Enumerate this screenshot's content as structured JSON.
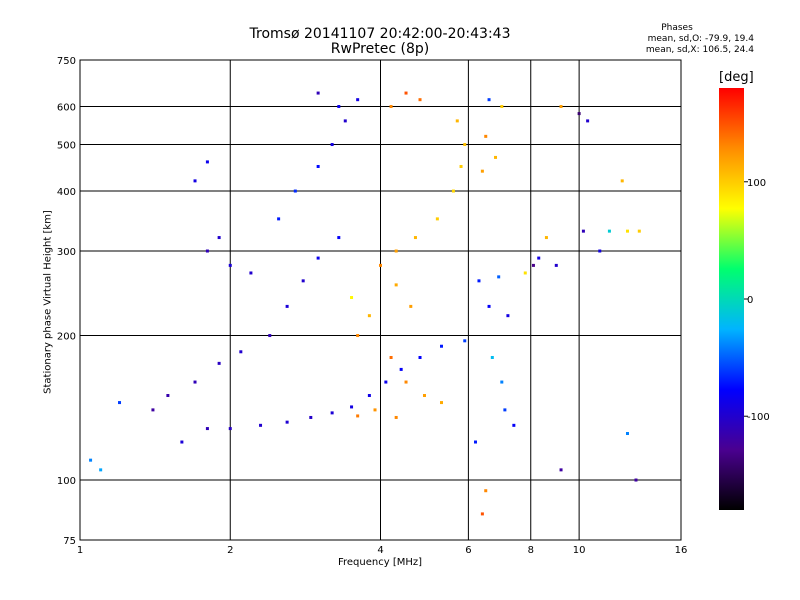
{
  "title_line1": "Tromsø 20141107 20:42:00-20:43:43",
  "title_line2": "RwPretec (8p)",
  "phase_box": {
    "heading": "Phases",
    "line_o": "mean, sd,O: -79.9, 19.4",
    "line_x": "mean, sd,X: 106.5, 24.4"
  },
  "colorbar": {
    "unit_label": "[deg]",
    "ticks": [
      100,
      0,
      -100
    ],
    "range": [
      -180,
      180
    ],
    "colormap": [
      "#000000",
      "#4a0090",
      "#0000ff",
      "#00b4ff",
      "#00ff6e",
      "#ffff00",
      "#ff8c00",
      "#ff0000"
    ]
  },
  "chart_data": {
    "type": "scatter",
    "title": "Tromsø 20141107 20:42:00-20:43:43",
    "subtitle": "RwPretec (8p)",
    "xlabel": "Frequency [MHz]",
    "ylabel": "Stationary phase Virtual Height [km]",
    "x_scale": "log",
    "y_scale": "log",
    "xlim": [
      1,
      16
    ],
    "ylim": [
      75,
      750
    ],
    "x_ticks": [
      1,
      2,
      4,
      6,
      8,
      10,
      16
    ],
    "y_ticks": [
      75,
      100,
      200,
      300,
      400,
      500,
      600,
      750
    ],
    "x_gridlines": [
      2,
      4,
      6,
      8,
      10
    ],
    "y_gridlines": [
      100,
      200,
      300,
      400,
      500,
      600
    ],
    "color_quantity": "phase [deg]",
    "series": [
      {
        "comment_free_note": "",
        "points": [
          [
            1.6,
            120,
            -95
          ],
          [
            1.8,
            128,
            -110
          ],
          [
            2.0,
            128,
            -105
          ],
          [
            2.3,
            130,
            -100
          ],
          [
            2.6,
            132,
            -98
          ],
          [
            2.9,
            135,
            -102
          ],
          [
            3.2,
            138,
            -96
          ],
          [
            3.5,
            142,
            -90
          ],
          [
            3.8,
            150,
            -88
          ],
          [
            4.1,
            160,
            -85
          ],
          [
            4.4,
            170,
            -80
          ],
          [
            4.8,
            180,
            -78
          ],
          [
            5.3,
            190,
            -70
          ],
          [
            5.9,
            195,
            -60
          ],
          [
            1.4,
            140,
            -120
          ],
          [
            1.5,
            150,
            -115
          ],
          [
            1.7,
            160,
            -110
          ],
          [
            1.9,
            175,
            -105
          ],
          [
            2.1,
            185,
            -100
          ],
          [
            1.2,
            145,
            -60
          ],
          [
            1.05,
            110,
            -40
          ],
          [
            1.1,
            105,
            -30
          ],
          [
            2.4,
            200,
            -110
          ],
          [
            2.6,
            230,
            -95
          ],
          [
            2.8,
            260,
            -100
          ],
          [
            3.0,
            290,
            -85
          ],
          [
            3.3,
            320,
            -80
          ],
          [
            2.5,
            350,
            -70
          ],
          [
            2.7,
            400,
            -65
          ],
          [
            3.0,
            450,
            -75
          ],
          [
            3.2,
            500,
            -90
          ],
          [
            3.4,
            560,
            -100
          ],
          [
            3.6,
            620,
            -90
          ],
          [
            3.0,
            640,
            -110
          ],
          [
            3.3,
            600,
            -85
          ],
          [
            2.2,
            270,
            -100
          ],
          [
            2.0,
            280,
            -95
          ],
          [
            1.8,
            300,
            -110
          ],
          [
            1.9,
            320,
            -100
          ],
          [
            1.7,
            420,
            -90
          ],
          [
            1.8,
            460,
            -85
          ],
          [
            3.5,
            240,
            80
          ],
          [
            3.8,
            220,
            110
          ],
          [
            3.6,
            200,
            130
          ],
          [
            4.2,
            180,
            140
          ],
          [
            4.5,
            160,
            130
          ],
          [
            4.9,
            150,
            120
          ],
          [
            5.3,
            145,
            115
          ],
          [
            3.9,
            140,
            125
          ],
          [
            4.3,
            135,
            130
          ],
          [
            3.6,
            136,
            135
          ],
          [
            4.0,
            280,
            130
          ],
          [
            4.3,
            300,
            120
          ],
          [
            4.7,
            320,
            110
          ],
          [
            5.2,
            350,
            100
          ],
          [
            5.6,
            400,
            95
          ],
          [
            5.8,
            450,
            100
          ],
          [
            5.9,
            500,
            105
          ],
          [
            5.7,
            560,
            110
          ],
          [
            4.8,
            620,
            140
          ],
          [
            4.5,
            640,
            150
          ],
          [
            4.2,
            600,
            130
          ],
          [
            4.6,
            230,
            120
          ],
          [
            4.3,
            255,
            115
          ],
          [
            6.5,
            520,
            130
          ],
          [
            6.8,
            470,
            110
          ],
          [
            6.4,
            440,
            120
          ],
          [
            7.0,
            600,
            100
          ],
          [
            6.6,
            620,
            -60
          ],
          [
            6.3,
            260,
            -70
          ],
          [
            6.9,
            265,
            -50
          ],
          [
            6.6,
            230,
            -80
          ],
          [
            7.2,
            220,
            -90
          ],
          [
            6.7,
            180,
            -20
          ],
          [
            7.0,
            160,
            -40
          ],
          [
            7.1,
            140,
            -60
          ],
          [
            6.2,
            120,
            -70
          ],
          [
            6.5,
            95,
            130
          ],
          [
            6.4,
            85,
            150
          ],
          [
            8.3,
            290,
            -90
          ],
          [
            9.0,
            280,
            -100
          ],
          [
            7.8,
            270,
            90
          ],
          [
            8.6,
            320,
            110
          ],
          [
            10.2,
            330,
            -110
          ],
          [
            11.5,
            330,
            -10
          ],
          [
            12.5,
            330,
            90
          ],
          [
            13.2,
            330,
            100
          ],
          [
            12.2,
            420,
            110
          ],
          [
            10.0,
            580,
            -140
          ],
          [
            9.2,
            600,
            120
          ],
          [
            10.4,
            560,
            -100
          ],
          [
            11.0,
            300,
            -90
          ],
          [
            12.5,
            125,
            -40
          ],
          [
            13.0,
            100,
            -120
          ],
          [
            9.2,
            105,
            -120
          ],
          [
            8.1,
            280,
            -130
          ],
          [
            7.4,
            130,
            -80
          ]
        ]
      }
    ],
    "grid": true,
    "colorbar_label": "[deg]",
    "colorbar_ticks": [
      100,
      0,
      -100
    ]
  }
}
